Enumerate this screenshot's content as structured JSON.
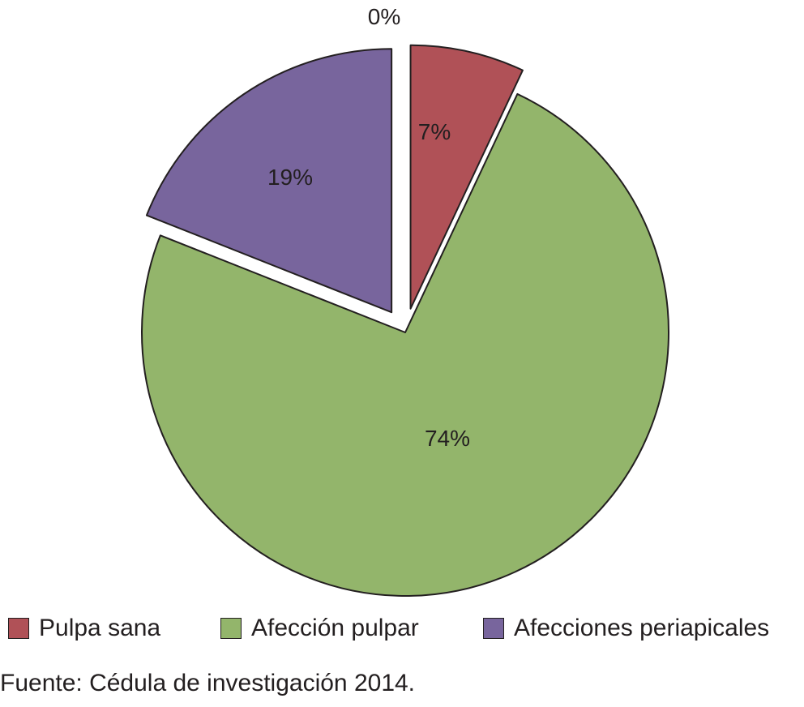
{
  "chart_data": {
    "type": "pie",
    "series": [
      {
        "name": "Pulpa sana",
        "value": 7,
        "label": "7%",
        "color": "#b05157"
      },
      {
        "name": "Afección pulpar",
        "value": 74,
        "label": "74%",
        "color": "#93b56b"
      },
      {
        "name": "Afecciones periapicales",
        "value": 19,
        "label": "19%",
        "color": "#78659d"
      }
    ],
    "zero_label": "0%",
    "legend_position": "bottom",
    "exploded_slices": [
      "Pulpa sana",
      "Afecciones periapicales"
    ]
  },
  "source": "Fuente: Cédula de investigación 2014."
}
